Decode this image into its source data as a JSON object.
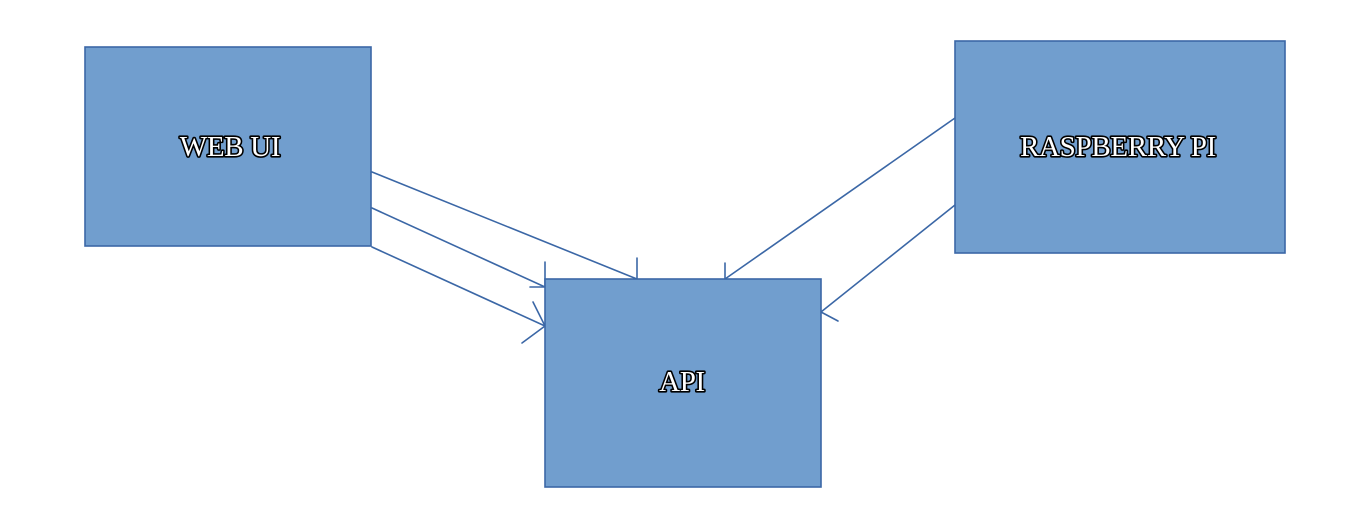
{
  "nodes": {
    "web_ui": {
      "label": "WEB UI"
    },
    "raspberry_pi": {
      "label": "RASPBERRY PI"
    },
    "api": {
      "label": "API"
    }
  },
  "connections": [
    {
      "from": "WEB UI",
      "to": "API"
    },
    {
      "from": "WEB UI",
      "to": "API"
    },
    {
      "from": "WEB UI",
      "to": "API"
    },
    {
      "from": "RASPBERRY PI",
      "to": "API"
    },
    {
      "from": "RASPBERRY PI",
      "to": "API"
    }
  ],
  "colors": {
    "box_fill": "#719ece",
    "box_stroke": "#3b67a6",
    "label_fill": "#ffffff",
    "label_outline": "#000000"
  }
}
